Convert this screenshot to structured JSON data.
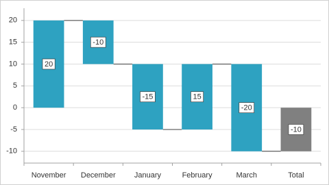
{
  "chart_data": {
    "type": "waterfall",
    "categories": [
      "November",
      "December",
      "January",
      "February",
      "March",
      "Total"
    ],
    "values": [
      20,
      -10,
      -15,
      15,
      -20,
      -10
    ],
    "colors": [
      "#2ea2c1",
      "#2ea2c1",
      "#2ea2c1",
      "#2ea2c1",
      "#2ea2c1",
      "#808080"
    ],
    "ylim": [
      -12.7,
      22.8
    ],
    "yticks": [
      -10,
      -5,
      0,
      5,
      10,
      15,
      20
    ],
    "grid": true
  }
}
